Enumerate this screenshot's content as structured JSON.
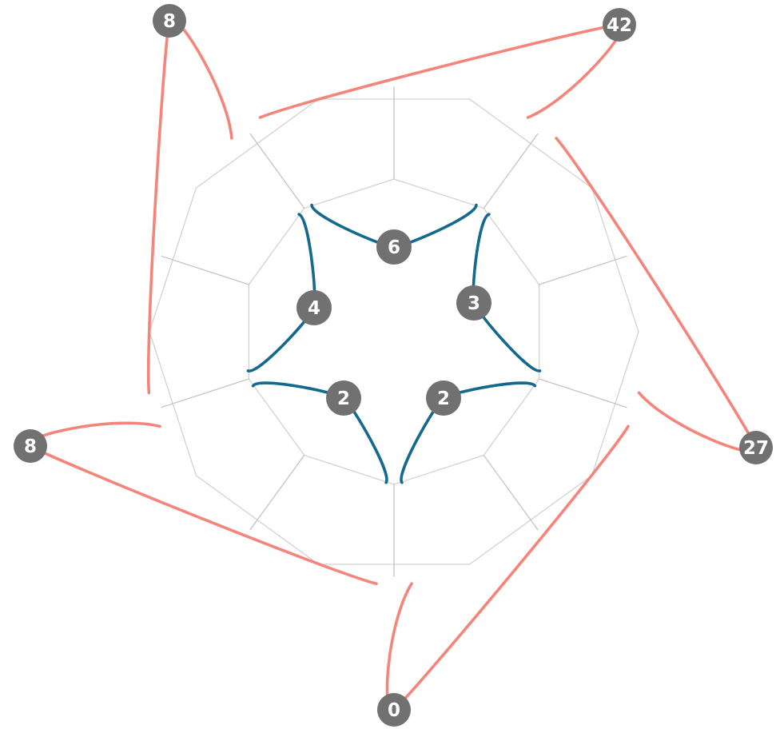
{
  "colors": {
    "outer_bracket": "#f4857b",
    "inner_bracket": "#14698c",
    "frame": "#d2d2d2",
    "badge": "#717171",
    "badge_text": "#ffffff"
  },
  "outer_badges": [
    {
      "id": "top-left",
      "value": "8"
    },
    {
      "id": "top-right",
      "value": "42"
    },
    {
      "id": "right",
      "value": "27"
    },
    {
      "id": "bottom",
      "value": "0"
    },
    {
      "id": "left",
      "value": "8"
    }
  ],
  "inner_badges": [
    {
      "id": "top",
      "value": "6"
    },
    {
      "id": "right",
      "value": "3"
    },
    {
      "id": "bottom-right",
      "value": "2"
    },
    {
      "id": "bottom-left",
      "value": "2"
    },
    {
      "id": "left",
      "value": "4"
    }
  ]
}
